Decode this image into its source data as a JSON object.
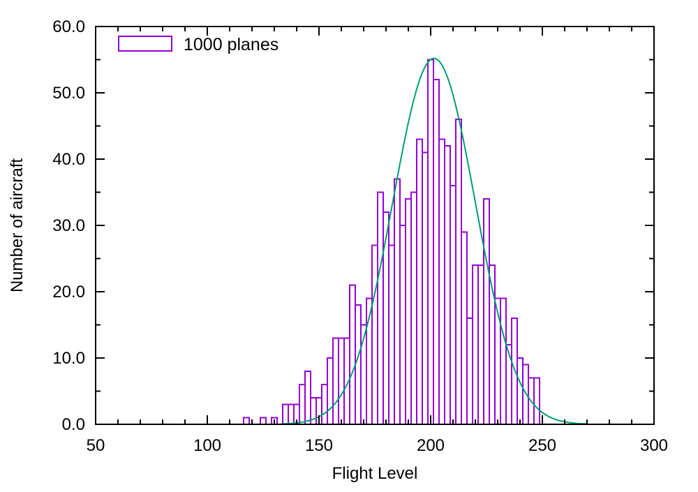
{
  "chart_data": {
    "type": "histogram_with_curve",
    "title": "",
    "xlabel": "Flight Level",
    "ylabel": "Number of aircraft",
    "xlim": [
      50,
      300
    ],
    "ylim": [
      0,
      60
    ],
    "x_major_ticks": [
      50,
      100,
      150,
      200,
      250,
      300
    ],
    "x_minor_step": 10,
    "y_major_ticks": [
      0,
      10,
      20,
      30,
      40,
      50,
      60
    ],
    "y_minor_step": 5,
    "y_tick_decimals": 1,
    "grid": false,
    "legend_position": "top-left",
    "legend": [
      {
        "label": "1000 planes",
        "color": "#9400d3"
      }
    ],
    "bin_width": 2.5,
    "bins": [
      [
        117.5,
        1
      ],
      [
        125,
        1
      ],
      [
        130,
        1
      ],
      [
        135,
        3
      ],
      [
        137.5,
        3
      ],
      [
        140,
        3
      ],
      [
        142.5,
        6
      ],
      [
        145,
        8
      ],
      [
        147.5,
        4
      ],
      [
        150,
        4
      ],
      [
        152.5,
        6
      ],
      [
        155,
        10
      ],
      [
        157.5,
        13
      ],
      [
        160,
        13
      ],
      [
        162.5,
        13
      ],
      [
        165,
        21
      ],
      [
        167.5,
        18
      ],
      [
        170,
        15
      ],
      [
        172.5,
        19
      ],
      [
        175,
        27
      ],
      [
        177.5,
        35
      ],
      [
        180,
        32
      ],
      [
        182.5,
        27
      ],
      [
        185,
        37
      ],
      [
        187.5,
        30
      ],
      [
        190,
        34
      ],
      [
        192.5,
        35
      ],
      [
        195,
        43
      ],
      [
        197.5,
        41
      ],
      [
        200,
        55
      ],
      [
        202.5,
        52
      ],
      [
        205,
        43
      ],
      [
        207.5,
        42
      ],
      [
        210,
        36
      ],
      [
        212.5,
        46
      ],
      [
        215,
        29
      ],
      [
        217.5,
        16
      ],
      [
        220,
        24
      ],
      [
        222.5,
        24
      ],
      [
        225,
        34
      ],
      [
        227.5,
        24
      ],
      [
        230,
        19
      ],
      [
        232.5,
        19
      ],
      [
        235,
        12
      ],
      [
        237.5,
        16
      ],
      [
        240,
        10
      ],
      [
        242.5,
        9
      ],
      [
        245,
        7
      ],
      [
        247.5,
        7
      ]
    ],
    "fit_curve": {
      "type": "gaussian",
      "amplitude": 55.2,
      "mean": 201.5,
      "sigma": 18.5,
      "color": "#009e73",
      "x_draw_range": [
        133,
        270
      ]
    },
    "colors": {
      "bar_stroke": "#9400d3",
      "curve": "#009e73",
      "axis": "#000000",
      "background": "#ffffff"
    }
  }
}
